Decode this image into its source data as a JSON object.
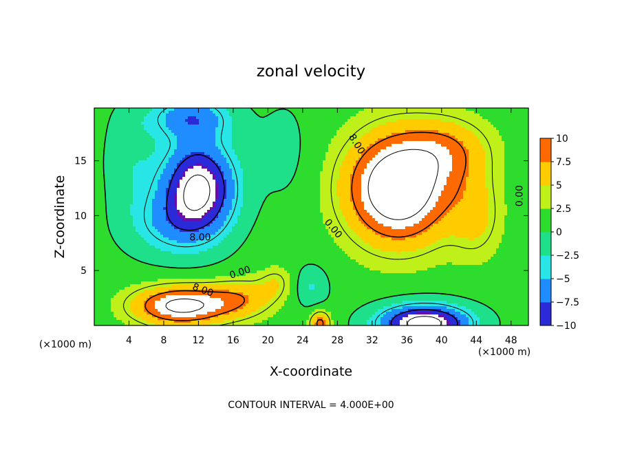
{
  "chart_data": {
    "type": "heatmap",
    "title": "zonal velocity",
    "xlabel": "X-coordinate",
    "ylabel": "Z-coordinate",
    "x_unit_label": "(×1000 m)",
    "z_unit_label": "(×1000 m)",
    "footer": "CONTOUR INTERVAL = 4.000E+00",
    "xlim": [
      0,
      50
    ],
    "ylim": [
      0,
      19.8
    ],
    "x_ticks": [
      4,
      8,
      12,
      16,
      20,
      24,
      28,
      32,
      36,
      40,
      44,
      48
    ],
    "y_ticks": [
      5,
      10,
      15
    ],
    "colorbar": {
      "ticks": [
        10,
        7.5,
        5,
        2.5,
        0,
        -2.5,
        -5,
        -7.5,
        -10
      ],
      "tick_labels": [
        "10",
        "7.5",
        "5",
        "2.5",
        "0",
        "−2.5",
        "−5",
        "−7.5",
        "−10"
      ],
      "range": [
        -10,
        10
      ]
    },
    "contour_interval": 4,
    "contour_labels": [
      {
        "text": "8.00",
        "x": 30.2,
        "z": 16.5,
        "rotate": 58
      },
      {
        "text": "0.00",
        "x": 49.0,
        "z": 11.8,
        "rotate": -90
      },
      {
        "text": "0.00",
        "x": 27.5,
        "z": 8.8,
        "rotate": 50
      },
      {
        "text": "8.00",
        "x": 12.2,
        "z": 8.0,
        "rotate": 0
      },
      {
        "text": "0.00",
        "x": 16.8,
        "z": 4.8,
        "rotate": -18
      },
      {
        "text": "8.00",
        "x": 12.5,
        "z": 3.2,
        "rotate": 20
      }
    ],
    "features": [
      {
        "x": 35,
        "z": 12.5,
        "amp": 15,
        "sx": 6.0,
        "sz": 5.0
      },
      {
        "x": 41,
        "z": 16,
        "amp": 5,
        "sx": 5,
        "sz": 3
      },
      {
        "x": 44,
        "z": 10,
        "amp": 4,
        "sx": 3,
        "sz": 4
      },
      {
        "x": 12,
        "z": 12.5,
        "amp": -14,
        "sx": 4.5,
        "sz": 4.5
      },
      {
        "x": 11,
        "z": 19,
        "amp": -7,
        "sx": 5,
        "sz": 2
      },
      {
        "x": 8,
        "z": 9,
        "amp": -4,
        "sx": 5,
        "sz": 3
      },
      {
        "x": 4,
        "z": 15,
        "amp": -3,
        "sx": 3,
        "sz": 5
      },
      {
        "x": 10,
        "z": 1.8,
        "amp": 12,
        "sx": 5.5,
        "sz": 1.8
      },
      {
        "x": 17,
        "z": 2.5,
        "amp": 5,
        "sx": 4,
        "sz": 1.8
      },
      {
        "x": 21,
        "z": 4,
        "amp": 3,
        "sx": 2,
        "sz": 1.5
      },
      {
        "x": 26,
        "z": 0.2,
        "amp": 8,
        "sx": 1.2,
        "sz": 1.2
      },
      {
        "x": 38,
        "z": 0.2,
        "amp": -15,
        "sx": 5.5,
        "sz": 1.8
      },
      {
        "x": 25,
        "z": 3.5,
        "amp": -4,
        "sx": 2,
        "sz": 2
      },
      {
        "x": 22,
        "z": 16,
        "amp": -2,
        "sx": 3,
        "sz": 5
      }
    ]
  }
}
